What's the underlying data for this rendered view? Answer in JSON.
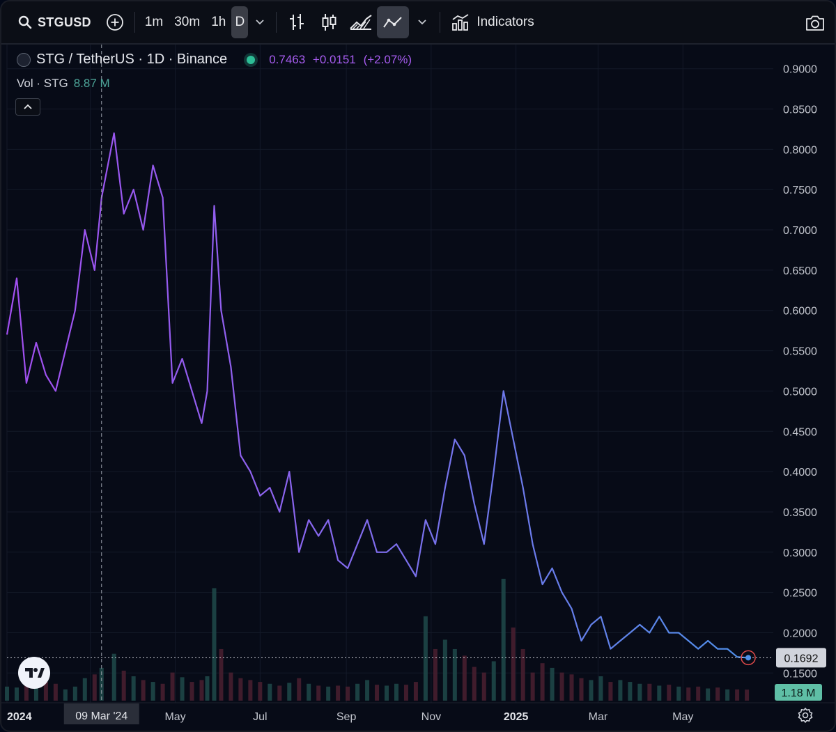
{
  "toolbar": {
    "symbol": "STGUSD",
    "timeframes": [
      "1m",
      "30m",
      "1h",
      "D"
    ],
    "active_timeframe": "D",
    "indicators_label": "Indicators"
  },
  "legend": {
    "title": "STG / TetherUS · 1D · Binance",
    "last": "0.7463",
    "change": "+0.0151",
    "change_pct": "(+2.07%)",
    "vol_label": "Vol · STG",
    "vol_value": "8.87 M"
  },
  "colors": {
    "background": "#070b17",
    "line_start": "#a24ff0",
    "line_end": "#4f8fe8",
    "volume_up": "#1f4a4a",
    "volume_down": "#4a2030",
    "price_tag_bg": "#d1d4dc",
    "volume_tag_bg": "#5fbfa6",
    "highlight": "#e24b4b"
  },
  "chart_data": {
    "type": "line",
    "title": "STG / TetherUS · 1D · Binance",
    "x": [
      "2024-01-01",
      "2024-01-08",
      "2024-01-15",
      "2024-01-22",
      "2024-01-29",
      "2024-02-05",
      "2024-02-12",
      "2024-02-19",
      "2024-02-26",
      "2024-03-04",
      "2024-03-09",
      "2024-03-18",
      "2024-03-25",
      "2024-04-01",
      "2024-04-08",
      "2024-04-15",
      "2024-04-22",
      "2024-04-29",
      "2024-05-06",
      "2024-05-13",
      "2024-05-20",
      "2024-05-24",
      "2024-05-29",
      "2024-06-03",
      "2024-06-10",
      "2024-06-17",
      "2024-06-24",
      "2024-07-01",
      "2024-07-08",
      "2024-07-15",
      "2024-07-22",
      "2024-07-29",
      "2024-08-05",
      "2024-08-12",
      "2024-08-19",
      "2024-08-26",
      "2024-09-02",
      "2024-09-09",
      "2024-09-16",
      "2024-09-23",
      "2024-09-30",
      "2024-10-07",
      "2024-10-14",
      "2024-10-21",
      "2024-10-28",
      "2024-11-04",
      "2024-11-11",
      "2024-11-18",
      "2024-11-25",
      "2024-12-02",
      "2024-12-09",
      "2024-12-16",
      "2024-12-23",
      "2024-12-30",
      "2025-01-06",
      "2025-01-13",
      "2025-01-20",
      "2025-01-27",
      "2025-02-03",
      "2025-02-10",
      "2025-02-17",
      "2025-02-24",
      "2025-03-03",
      "2025-03-10",
      "2025-03-17",
      "2025-03-24",
      "2025-03-31",
      "2025-04-07",
      "2025-04-14",
      "2025-04-21",
      "2025-04-28",
      "2025-05-05",
      "2025-05-12",
      "2025-05-19",
      "2025-05-26",
      "2025-06-02",
      "2025-06-09",
      "2025-06-16"
    ],
    "series": [
      {
        "values": [
          0.57,
          0.64,
          0.51,
          0.56,
          0.52,
          0.5,
          0.55,
          0.6,
          0.7,
          0.65,
          0.74,
          0.82,
          0.72,
          0.75,
          0.7,
          0.78,
          0.74,
          0.51,
          0.54,
          0.5,
          0.46,
          0.5,
          0.73,
          0.6,
          0.53,
          0.42,
          0.4,
          0.37,
          0.38,
          0.35,
          0.4,
          0.3,
          0.34,
          0.32,
          0.34,
          0.29,
          0.28,
          0.31,
          0.34,
          0.3,
          0.3,
          0.31,
          0.29,
          0.27,
          0.34,
          0.31,
          0.38,
          0.44,
          0.42,
          0.36,
          0.31,
          0.4,
          0.5,
          0.44,
          0.38,
          0.31,
          0.26,
          0.28,
          0.25,
          0.23,
          0.19,
          0.21,
          0.22,
          0.18,
          0.19,
          0.2,
          0.21,
          0.2,
          0.22,
          0.2,
          0.2,
          0.19,
          0.18,
          0.19,
          0.18,
          0.18,
          0.17,
          0.169
        ]
      }
    ],
    "volume": [
      1.5,
      1.4,
      1.6,
      1.3,
      2.0,
      1.8,
      1.2,
      1.5,
      2.4,
      2.8,
      3.5,
      5.0,
      3.2,
      2.6,
      2.2,
      2.0,
      1.8,
      3.0,
      2.5,
      2.0,
      2.2,
      2.6,
      12.0,
      5.5,
      3.0,
      2.4,
      2.2,
      2.0,
      1.8,
      1.6,
      1.9,
      2.4,
      1.8,
      1.6,
      1.5,
      1.6,
      1.5,
      1.8,
      2.2,
      1.7,
      1.6,
      1.8,
      1.7,
      2.0,
      9.0,
      5.5,
      6.5,
      5.5,
      4.8,
      3.6,
      3.0,
      4.2,
      13.0,
      7.8,
      5.5,
      3.0,
      4.0,
      3.5,
      3.0,
      2.8,
      2.4,
      2.2,
      2.6,
      2.0,
      2.2,
      2.0,
      1.8,
      1.8,
      1.6,
      1.7,
      1.5,
      1.4,
      1.5,
      1.3,
      1.4,
      1.2,
      1.2,
      1.18
    ],
    "ylim": [
      0.12,
      0.93
    ],
    "y_ticks": [
      "0.9000",
      "0.8500",
      "0.8000",
      "0.7500",
      "0.7000",
      "0.6500",
      "0.6000",
      "0.5500",
      "0.5000",
      "0.4500",
      "0.4000",
      "0.3500",
      "0.3000",
      "0.2500",
      "0.2000",
      "0.1500"
    ],
    "x_ticks": [
      "2024",
      "May",
      "Jul",
      "Sep",
      "Nov",
      "2025",
      "Mar",
      "May"
    ],
    "crosshair_label": "09 Mar '24",
    "last_price_label": "0.1692",
    "last_volume_label": "1.18 M",
    "grid": true
  }
}
